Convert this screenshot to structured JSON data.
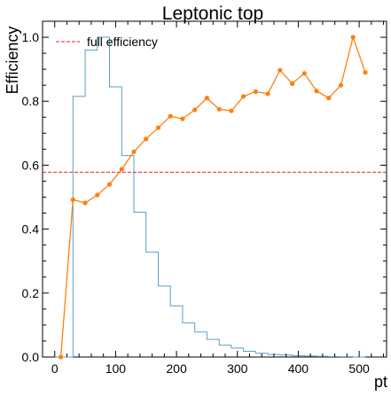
{
  "chart_data": {
    "type": "line",
    "title": "Leptonic top",
    "xlabel": "pt",
    "ylabel": "Efficiency",
    "xlim": [
      -20,
      545
    ],
    "ylim": [
      0,
      1.05
    ],
    "x_ticks": [
      0,
      100,
      200,
      300,
      400,
      500
    ],
    "y_ticks": [
      0.0,
      0.2,
      0.4,
      0.6,
      0.8,
      1.0
    ],
    "x_tick_labels": [
      "0",
      "100",
      "200",
      "300",
      "400",
      "500"
    ],
    "y_tick_labels": [
      "0.0",
      "0.2",
      "0.4",
      "0.6",
      "0.8",
      "1.0"
    ],
    "grid": false,
    "legend": {
      "position": "top-left",
      "entries": [
        "full efficiency"
      ]
    },
    "reference_line": {
      "name": "full efficiency",
      "y": 0.578,
      "color": "#d62728",
      "style": "dashed"
    },
    "histogram": {
      "color": "#5b9fc8",
      "bin_edges": [
        0,
        10,
        30,
        50,
        70,
        90,
        110,
        130,
        150,
        170,
        190,
        210,
        230,
        250,
        270,
        290,
        310,
        330,
        350,
        370,
        390,
        410,
        430,
        450,
        470,
        490,
        510
      ],
      "heights": [
        0.0,
        0.0,
        0.815,
        0.96,
        1.0,
        0.845,
        0.63,
        0.453,
        0.328,
        0.222,
        0.16,
        0.107,
        0.078,
        0.055,
        0.037,
        0.028,
        0.018,
        0.012,
        0.008,
        0.006,
        0.004,
        0.003,
        0.002,
        0.0015,
        0.001,
        0.0
      ]
    },
    "series": [
      {
        "color": "#ff7f0e",
        "x": [
          10,
          30,
          50,
          70,
          90,
          110,
          130,
          150,
          170,
          190,
          210,
          230,
          250,
          270,
          290,
          310,
          330,
          350,
          370,
          390,
          410,
          430,
          450,
          470,
          490,
          510
        ],
        "values": [
          0.0,
          0.492,
          0.482,
          0.507,
          0.54,
          0.587,
          0.642,
          0.682,
          0.717,
          0.753,
          0.745,
          0.773,
          0.81,
          0.775,
          0.77,
          0.815,
          0.83,
          0.823,
          0.897,
          0.855,
          0.887,
          0.832,
          0.81,
          0.85,
          1.0,
          0.89
        ]
      }
    ]
  }
}
